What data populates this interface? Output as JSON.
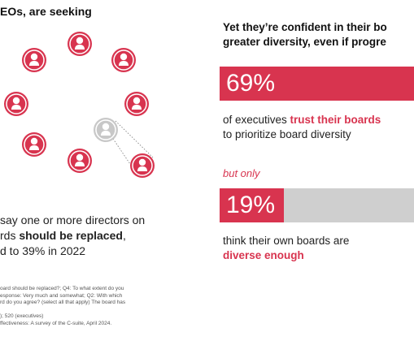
{
  "left": {
    "heading": "EOs, are seeking",
    "statement": {
      "line1": "say one or more directors on",
      "line2_pre": "rds ",
      "line2_bold": "should be replaced",
      "line2_post": ",",
      "line3": "d to 39% in 2022"
    },
    "footnote": [
      "oard should be replaced?; Q4: To what extent do you",
      "esponse: Very much and somewhat; Q2: With which",
      "rd do you agree? (select all that apply) The board has",
      "",
      "); 520 (executives)",
      "ffectiveness: A survey of the C-suite, April 2024."
    ]
  },
  "right": {
    "heading_line1": "Yet they’re confident in their bo",
    "heading_line2": "greater diversity, even if progre",
    "stat1": {
      "value_label": "69%",
      "fraction": 1.0
    },
    "desc1_pre": "of executives ",
    "desc1_highlight": "trust their boards",
    "desc1_line2": "to prioritize board diversity",
    "but_only": "but only",
    "stat2": {
      "value_label": "19%",
      "fraction": 0.33
    },
    "desc2_line1": "think their own boards are",
    "desc2_highlight": "diverse enough"
  },
  "colors": {
    "accent": "#d8344f",
    "gray": "#c8c8c8",
    "track": "#cfcfcf"
  },
  "icons": {
    "person": "person-icon",
    "ring": "director-ring"
  }
}
